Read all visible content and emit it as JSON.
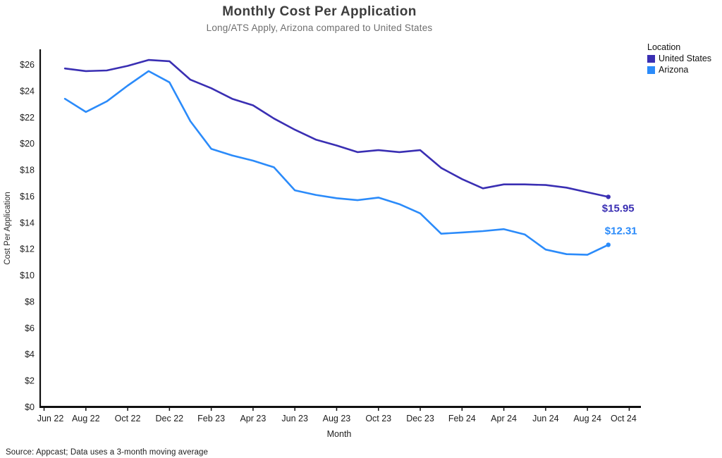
{
  "header": {
    "title": "Monthly Cost Per Application",
    "subtitle": "Long/ATS Apply, Arizona compared to United States"
  },
  "legend": {
    "title": "Location",
    "items": [
      {
        "label": "United States",
        "color": "#3A2FB3"
      },
      {
        "label": "Arizona",
        "color": "#2B8BFA"
      }
    ]
  },
  "source": "Source: Appcast; Data uses a 3-month moving average",
  "chart_data": {
    "type": "line",
    "title": "Monthly Cost Per Application",
    "subtitle": "Long/ATS Apply, Arizona compared to United States",
    "xlabel": "Month",
    "ylabel": "Cost Per Application",
    "ylim": [
      0,
      26
    ],
    "ytick_step": 2,
    "ytick_prefix": "$",
    "grid": false,
    "legend_position": "top-right",
    "x_tick_labels": [
      "Jun 22",
      "Aug 22",
      "Oct 22",
      "Dec 22",
      "Feb 23",
      "Apr 23",
      "Jun 23",
      "Aug 23",
      "Oct 23",
      "Dec 23",
      "Feb 24",
      "Apr 24",
      "Jun 24",
      "Aug 24",
      "Oct 24"
    ],
    "x": [
      "Jul 22",
      "Aug 22",
      "Sep 22",
      "Oct 22",
      "Nov 22",
      "Dec 22",
      "Jan 23",
      "Feb 23",
      "Mar 23",
      "Apr 23",
      "May 23",
      "Jun 23",
      "Jul 23",
      "Aug 23",
      "Sep 23",
      "Oct 23",
      "Nov 23",
      "Dec 23",
      "Jan 24",
      "Feb 24",
      "Mar 24",
      "Apr 24",
      "May 24",
      "Jun 24",
      "Jul 24",
      "Aug 24",
      "Sep 24"
    ],
    "series": [
      {
        "name": "United States",
        "color": "#3A2FB3",
        "end_label": "$15.95",
        "end_value": 15.95,
        "values": [
          25.7,
          25.5,
          25.55,
          25.9,
          26.35,
          26.25,
          24.85,
          24.2,
          23.4,
          22.9,
          21.9,
          21.05,
          20.3,
          19.85,
          19.35,
          19.5,
          19.35,
          19.5,
          18.15,
          17.3,
          16.6,
          16.9,
          16.9,
          16.85,
          16.65,
          16.3,
          15.95
        ],
        "label_dx": -9,
        "label_dy": 21
      },
      {
        "name": "Arizona",
        "color": "#2B8BFA",
        "end_label": "$12.31",
        "end_value": 12.31,
        "values": [
          23.4,
          22.4,
          23.2,
          24.4,
          25.5,
          24.65,
          21.7,
          19.6,
          19.1,
          18.7,
          18.2,
          16.45,
          16.1,
          15.85,
          15.7,
          15.9,
          15.4,
          14.7,
          13.15,
          13.25,
          13.35,
          13.5,
          13.1,
          11.95,
          11.6,
          11.55,
          12.31
        ],
        "label_dx": -5,
        "label_dy": -15
      }
    ]
  }
}
